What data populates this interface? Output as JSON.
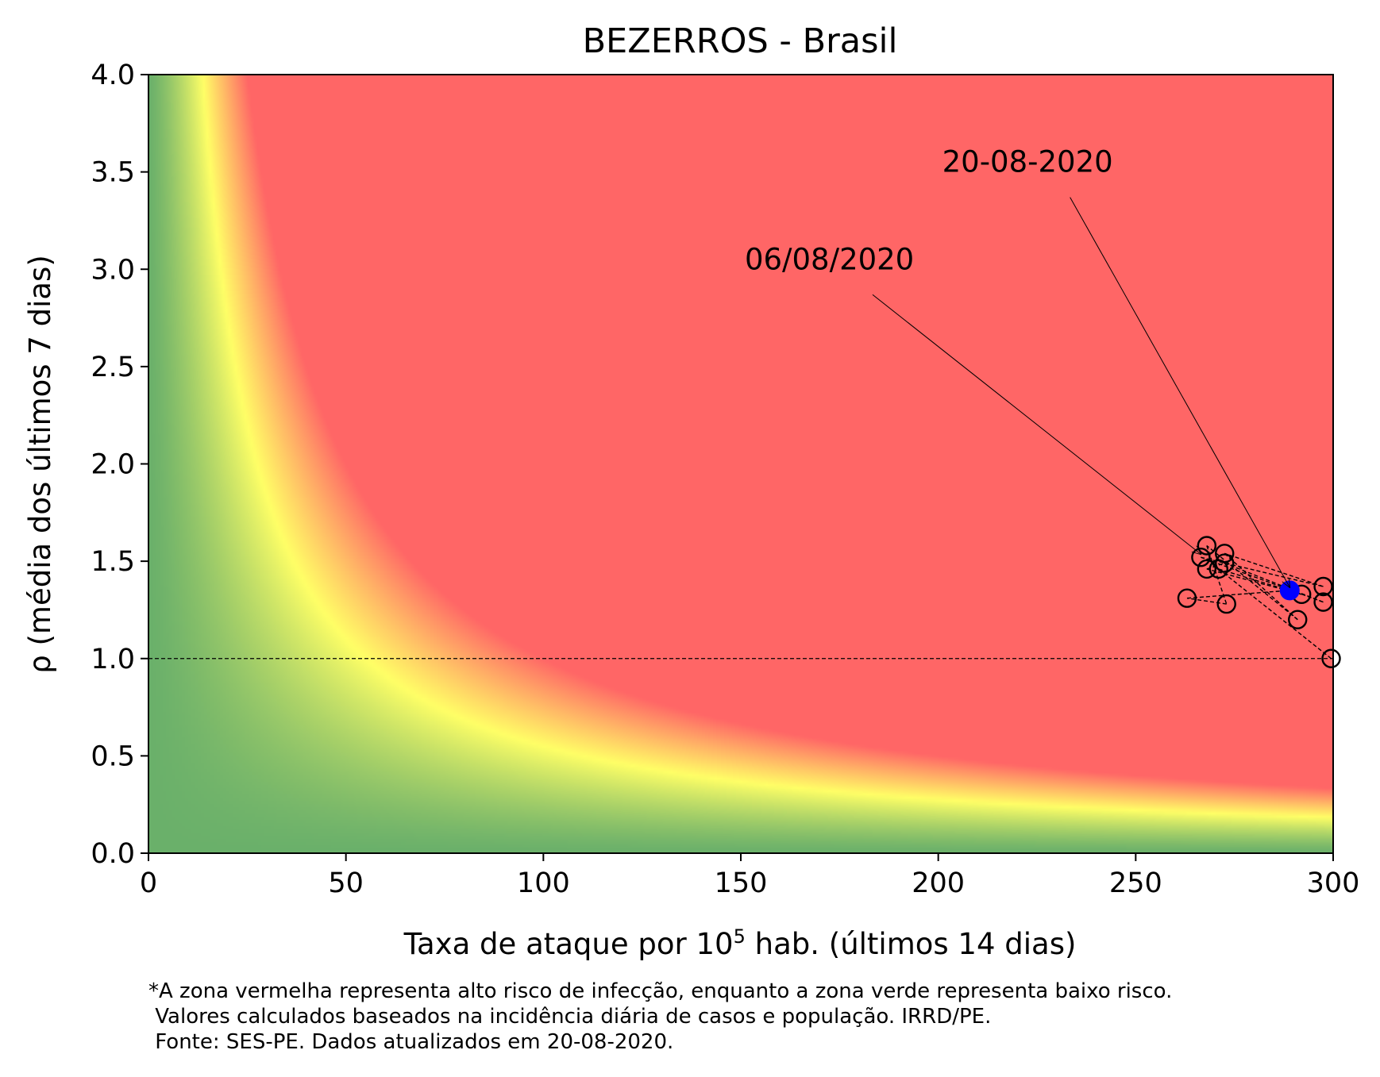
{
  "chart_data": {
    "type": "scatter",
    "title": "BEZERROS - Brasil",
    "xlabel": {
      "prefix": "Taxa de ataque por 10",
      "sup": "5",
      "suffix": " hab. (últimos 14 dias)"
    },
    "ylabel": "ρ (média dos últimos 7 dias)",
    "xlim": [
      0,
      300
    ],
    "ylim": [
      0,
      4
    ],
    "xticks": [
      0,
      50,
      100,
      150,
      200,
      250,
      300
    ],
    "yticks": [
      0.0,
      0.5,
      1.0,
      1.5,
      2.0,
      2.5,
      3.0,
      3.5,
      4.0
    ],
    "ytick_labels": [
      "0.0",
      "0.5",
      "1.0",
      "1.5",
      "2.0",
      "2.5",
      "3.0",
      "3.5",
      "4.0"
    ],
    "reference_line_y": 1.0,
    "background": {
      "kind": "risk-gradient",
      "green": "#6ab06a",
      "yellow": "#ffff66",
      "red": "#ff6666"
    },
    "series": [
      {
        "marker": "open-circle",
        "color": "#000000",
        "points": [
          [
            299.5,
            1.0
          ],
          [
            271.0,
            1.46
          ],
          [
            292.0,
            1.33
          ],
          [
            268.0,
            1.46
          ],
          [
            272.5,
            1.49
          ],
          [
            297.5,
            1.29
          ],
          [
            266.5,
            1.52
          ],
          [
            297.5,
            1.37
          ],
          [
            272.5,
            1.54
          ],
          [
            291.0,
            1.2
          ],
          [
            268.0,
            1.58
          ],
          [
            273.0,
            1.28
          ],
          [
            263.0,
            1.31
          ],
          [
            289.0,
            1.35
          ]
        ]
      }
    ],
    "current_point": {
      "x": 289.0,
      "y": 1.35,
      "color": "#0000ff"
    },
    "annotations": [
      {
        "text": "06/08/2020",
        "point": [
          266.5,
          1.52
        ],
        "text_pos": [
          151,
          3.0
        ]
      },
      {
        "text": "20-08-2020",
        "point": [
          289.0,
          1.35
        ],
        "text_pos": [
          201,
          3.5
        ]
      }
    ],
    "footnote": [
      "*A zona vermelha representa alto risco de infecção, enquanto a zona verde representa baixo risco.",
      " Valores calculados baseados na incidência diária de casos e população. IRRD/PE.",
      " Fonte: SES-PE. Dados atualizados em 20-08-2020."
    ]
  }
}
